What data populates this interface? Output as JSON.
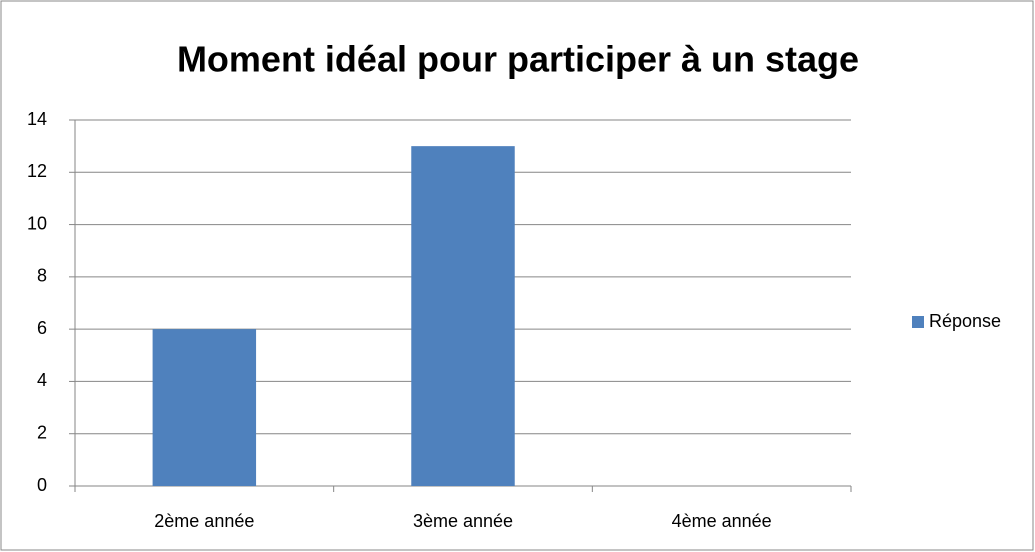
{
  "chart_data": {
    "type": "bar",
    "title": "Moment idéal pour participer à un stage",
    "categories": [
      "2ème année",
      "3ème année",
      "4ème année"
    ],
    "series": [
      {
        "name": "Réponse",
        "color": "#4f81bd",
        "values": [
          6,
          13,
          0
        ]
      }
    ],
    "ylim": [
      0,
      14
    ],
    "yticks": [
      0,
      2,
      4,
      6,
      8,
      10,
      12,
      14
    ],
    "grid": true,
    "legend": "right"
  }
}
